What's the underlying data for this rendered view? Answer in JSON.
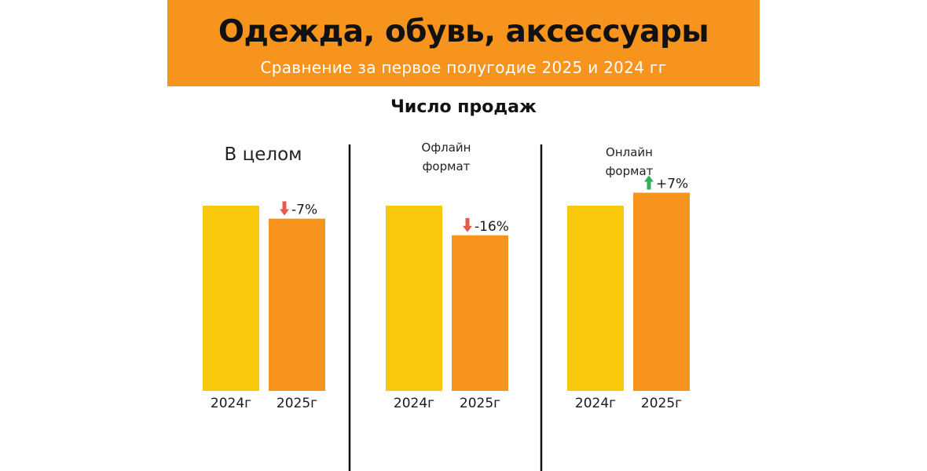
{
  "header": {
    "title": "Одежда, обувь, аксессуары",
    "subtitle": "Сравнение за первое полугодие 2025 и 2024 гг",
    "background": "#F7941D"
  },
  "section_title": "Число продаж",
  "colors": {
    "bar_2024": "#F9C80B",
    "bar_2025": "#F7941D",
    "down_arrow": "#E35B4F",
    "up_arrow": "#2FB05C",
    "divider": "#111111"
  },
  "chart_data": [
    {
      "type": "bar",
      "title": "В целом",
      "categories": [
        "2024г",
        "2025г"
      ],
      "values": [
        100,
        93
      ],
      "change_label": "-7%",
      "change_direction": "down"
    },
    {
      "type": "bar",
      "title": "Офлайн\nформат",
      "categories": [
        "2024г",
        "2025г"
      ],
      "values": [
        100,
        84
      ],
      "change_label": "-16%",
      "change_direction": "down"
    },
    {
      "type": "bar",
      "title": "Онлайн\nформат",
      "categories": [
        "2024г",
        "2025г"
      ],
      "values": [
        100,
        107
      ],
      "change_label": "+7%",
      "change_direction": "up"
    }
  ]
}
